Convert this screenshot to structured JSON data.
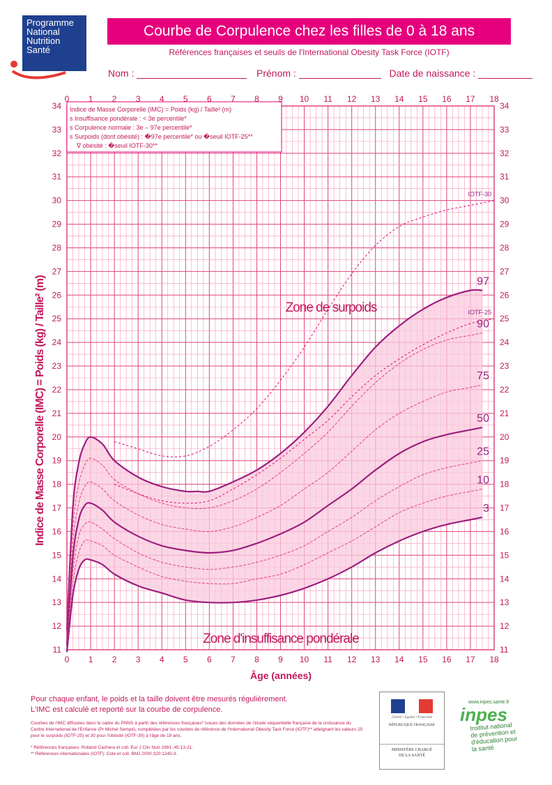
{
  "logo": {
    "line1": "Programme",
    "line2": "National",
    "line3": "Nutrition",
    "line4": "Santé"
  },
  "header": {
    "title": "Courbe de Corpulence chez les filles  de 0 à 18 ans",
    "subtitle": "Références françaises et seuils de l'International Obesity Task Force (IOTF)"
  },
  "form": {
    "name_label": "Nom :",
    "firstname_label": "Prénom :",
    "birthdate_label": "Date de naissance :"
  },
  "legend": {
    "line1": "Indice de Masse Corporelle (IMC) = Poids (kg) / Taille² (m)",
    "line2": "s  Insuffisance pondérale : < 3e percentile*",
    "line3": "s  Corpulence normale : 3e – 97e percentile*",
    "line4": "s  Surpoids (dont obésité) : �97e percentile*  ou �seuil IOTF-25**",
    "line5": "ᐁ  obésité : �seuil IOTF-30**"
  },
  "colors": {
    "accent": "#e6007e",
    "curve": "#9c1f7f",
    "grid_major": "#e0457b",
    "grid_minor": "#f29ab8",
    "band": "#f9c9de"
  },
  "chart_data": {
    "type": "line",
    "title": "",
    "xlabel": "Âge (années)",
    "ylabel": "Indice de Masse Corporelle (IMC) = Poids (kg) / Taille² (m)",
    "xlim": [
      0,
      18
    ],
    "ylim": [
      11,
      34
    ],
    "x_ticks": [
      0,
      1,
      2,
      3,
      4,
      5,
      6,
      7,
      8,
      9,
      10,
      11,
      12,
      13,
      14,
      15,
      16,
      17,
      18
    ],
    "y_ticks": [
      11,
      12,
      13,
      14,
      15,
      16,
      17,
      18,
      19,
      20,
      21,
      22,
      23,
      24,
      25,
      26,
      27,
      28,
      29,
      30,
      31,
      32,
      33,
      34
    ],
    "grid": true,
    "zone_labels": [
      "Zone de surpoids",
      "Zone d'insuffisance pondérale"
    ],
    "series": [
      {
        "name": "97",
        "style": "solid",
        "x": [
          0,
          0.25,
          0.5,
          0.75,
          1,
          1.5,
          2,
          3,
          4,
          5,
          5.5,
          6,
          7,
          8,
          9,
          10,
          11,
          12,
          13,
          14,
          15,
          16,
          17,
          17.5
        ],
        "y": [
          11.8,
          17.0,
          18.9,
          19.7,
          20.0,
          19.7,
          19.0,
          18.3,
          17.9,
          17.7,
          17.7,
          17.7,
          18.1,
          18.6,
          19.3,
          20.2,
          21.3,
          22.6,
          23.8,
          24.7,
          25.4,
          25.9,
          26.2,
          26.2
        ]
      },
      {
        "name": "90",
        "style": "dashed",
        "x": [
          0,
          0.25,
          0.5,
          0.75,
          1,
          1.5,
          2,
          3,
          4,
          5,
          6,
          7,
          8,
          9,
          10,
          11,
          12,
          13,
          14,
          15,
          16,
          17,
          17.5
        ],
        "y": [
          11.6,
          16.2,
          18.0,
          18.8,
          19.1,
          18.8,
          18.2,
          17.6,
          17.2,
          17.0,
          17.0,
          17.3,
          17.8,
          18.5,
          19.3,
          20.2,
          21.3,
          22.3,
          23.1,
          23.7,
          24.1,
          24.3,
          24.4
        ]
      },
      {
        "name": "75",
        "style": "dashed",
        "x": [
          0,
          0.25,
          0.5,
          0.75,
          1,
          1.5,
          2,
          3,
          4,
          5,
          6,
          7,
          8,
          9,
          10,
          11,
          12,
          13,
          14,
          15,
          16,
          17,
          17.5
        ],
        "y": [
          11.4,
          15.5,
          17.2,
          17.9,
          18.1,
          17.8,
          17.3,
          16.7,
          16.3,
          16.1,
          16.0,
          16.2,
          16.6,
          17.1,
          17.8,
          18.5,
          19.4,
          20.3,
          21.0,
          21.5,
          21.9,
          22.1,
          22.2
        ]
      },
      {
        "name": "50",
        "style": "solid",
        "x": [
          0,
          0.25,
          0.5,
          0.75,
          1,
          1.5,
          2,
          3,
          4,
          5,
          6,
          7,
          8,
          9,
          10,
          11,
          12,
          13,
          14,
          15,
          16,
          17,
          17.5
        ],
        "y": [
          11.2,
          14.9,
          16.5,
          17.1,
          17.2,
          16.9,
          16.4,
          15.8,
          15.4,
          15.2,
          15.1,
          15.2,
          15.5,
          15.9,
          16.4,
          17.1,
          17.8,
          18.6,
          19.3,
          19.8,
          20.1,
          20.3,
          20.4
        ]
      },
      {
        "name": "25",
        "style": "dashed",
        "x": [
          0,
          0.25,
          0.5,
          0.75,
          1,
          1.5,
          2,
          3,
          4,
          5,
          6,
          7,
          8,
          9,
          10,
          11,
          12,
          13,
          14,
          15,
          16,
          17,
          17.5
        ],
        "y": [
          11.1,
          14.3,
          15.8,
          16.3,
          16.4,
          16.1,
          15.7,
          15.1,
          14.7,
          14.5,
          14.4,
          14.5,
          14.7,
          15.0,
          15.4,
          16.0,
          16.6,
          17.3,
          17.9,
          18.4,
          18.7,
          18.9,
          19.0
        ]
      },
      {
        "name": "10",
        "style": "dashed",
        "x": [
          0,
          0.25,
          0.5,
          0.75,
          1,
          1.5,
          2,
          3,
          4,
          5,
          6,
          7,
          8,
          9,
          10,
          11,
          12,
          13,
          14,
          15,
          16,
          17,
          17.5
        ],
        "y": [
          11.0,
          13.8,
          15.1,
          15.6,
          15.6,
          15.4,
          15.0,
          14.5,
          14.1,
          13.9,
          13.8,
          13.8,
          14.0,
          14.2,
          14.6,
          15.1,
          15.6,
          16.2,
          16.8,
          17.2,
          17.5,
          17.7,
          17.8
        ]
      },
      {
        "name": "3",
        "style": "solid",
        "x": [
          0,
          0.25,
          0.5,
          0.75,
          1,
          1.5,
          2,
          3,
          4,
          5,
          6,
          7,
          8,
          9,
          10,
          11,
          12,
          13,
          14,
          15,
          16,
          17,
          17.5
        ],
        "y": [
          10.9,
          13.3,
          14.4,
          14.8,
          14.8,
          14.6,
          14.2,
          13.7,
          13.4,
          13.1,
          13.0,
          13.0,
          13.1,
          13.3,
          13.6,
          14.0,
          14.5,
          15.1,
          15.6,
          16.0,
          16.3,
          16.5,
          16.6
        ]
      },
      {
        "name": "IOTF-30",
        "style": "thin-dashed",
        "x": [
          2,
          3,
          4,
          5,
          6,
          7,
          8,
          9,
          10,
          11,
          12,
          13,
          14,
          15,
          16,
          17,
          18
        ],
        "y": [
          19.8,
          19.5,
          19.2,
          19.2,
          19.6,
          20.3,
          21.2,
          22.4,
          23.8,
          25.4,
          26.9,
          28.1,
          28.9,
          29.3,
          29.6,
          29.8,
          30.0
        ]
      },
      {
        "name": "IOTF-25",
        "style": "thin-dashed",
        "x": [
          2,
          3,
          4,
          5,
          6,
          7,
          8,
          9,
          10,
          11,
          12,
          13,
          14,
          15,
          16,
          17,
          18
        ],
        "y": [
          18.0,
          17.6,
          17.3,
          17.2,
          17.3,
          17.8,
          18.4,
          19.1,
          19.9,
          20.7,
          21.7,
          22.6,
          23.3,
          23.9,
          24.4,
          24.8,
          25.0
        ]
      }
    ]
  },
  "footer": {
    "note_line1": "Pour chaque enfant, le poids et la taille doivent être mesurés régulièrement.",
    "note_line2": "L'IMC est calculé et reporté sur la courbe de corpulence.",
    "small_text": "Courbes de l'IMC diffusées dans le cadre du PNNS à partir des références françaises* issues des données de l'étude séquentielle française de la croissance du Centre International de l'Enfance (Pr Michel Sempé), complétées par les courbes de référence de l'International Obesity Task Force (IOTF)** atteignant les valeurs 25 pour le surpoids (IOTF-25) et 30 pour l'obésité (IOTF-30) à l'âge de 18 ans.",
    "ref1": "*  Références  françaises: Rolland Cachera et coll. Eur J Clin Nutr 1991 ;45:13-21.",
    "ref2": "** Références  internationales (IOTF): Cole et coll. BMJ 2000;320:1240-3."
  },
  "republic": {
    "motto": "Liberté • Égalité • Fraternité",
    "name": "RÉPUBLIQUE FRANÇAISE",
    "ministry_line1": "MINISTÈRE CHARGÉ",
    "ministry_line2": "DE LA SANTÉ"
  },
  "inpes": {
    "url": "www.inpes.sante.fr",
    "logo": "inpes",
    "line1": "Institut national",
    "line2": "de prévention et",
    "line3": "d'éducation pour",
    "line4": "la santé"
  }
}
